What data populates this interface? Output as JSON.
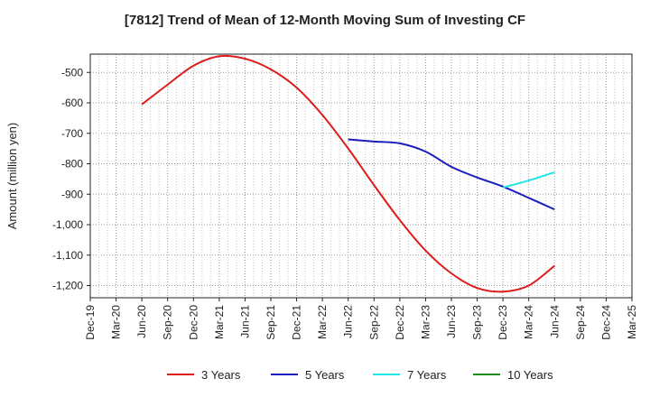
{
  "chart_data": {
    "type": "line",
    "title": "[7812]  Trend of Mean of 12-Month Moving Sum of Investing CF",
    "ylabel": "Amount (million yen)",
    "xlabel": "",
    "categories": [
      "Dec-19",
      "Mar-20",
      "Jun-20",
      "Sep-20",
      "Dec-20",
      "Mar-21",
      "Jun-21",
      "Sep-21",
      "Dec-21",
      "Mar-22",
      "Jun-22",
      "Sep-22",
      "Dec-22",
      "Mar-23",
      "Jun-23",
      "Sep-23",
      "Dec-23",
      "Mar-24",
      "Jun-24",
      "Sep-24",
      "Dec-24",
      "Mar-25"
    ],
    "ylim": [
      -1240,
      -440
    ],
    "yticks": [
      -500,
      -600,
      -700,
      -800,
      -900,
      -1000,
      -1100,
      -1200
    ],
    "ytick_labels": [
      "-500",
      "-600",
      "-700",
      "-800",
      "-900",
      "-1,000",
      "-1,100",
      "-1,200"
    ],
    "grid": true,
    "legend_position": "bottom",
    "series": [
      {
        "name": "3 Years",
        "color": "#dd1c1c",
        "values": [
          null,
          null,
          -605,
          -540,
          -478,
          -447,
          -455,
          -490,
          -550,
          -640,
          -750,
          -870,
          -985,
          -1085,
          -1160,
          -1208,
          -1220,
          -1200,
          -1135,
          null,
          null,
          null
        ]
      },
      {
        "name": "5 Years",
        "color": "#1c1cbf",
        "values": [
          null,
          null,
          null,
          null,
          null,
          null,
          null,
          null,
          null,
          null,
          -720,
          -727,
          -733,
          -760,
          -810,
          -845,
          -875,
          -912,
          -950,
          null,
          null,
          null
        ]
      },
      {
        "name": "7 Years",
        "color": "#22e5e5",
        "values": [
          null,
          null,
          null,
          null,
          null,
          null,
          null,
          null,
          null,
          null,
          null,
          null,
          null,
          null,
          null,
          null,
          -878,
          -855,
          -828,
          null,
          null,
          null
        ]
      },
      {
        "name": "10 Years",
        "color": "#1c8c1c",
        "values": [
          null,
          null,
          null,
          null,
          null,
          null,
          null,
          null,
          null,
          null,
          null,
          null,
          null,
          null,
          null,
          null,
          null,
          null,
          null,
          null,
          null,
          null
        ]
      }
    ]
  }
}
